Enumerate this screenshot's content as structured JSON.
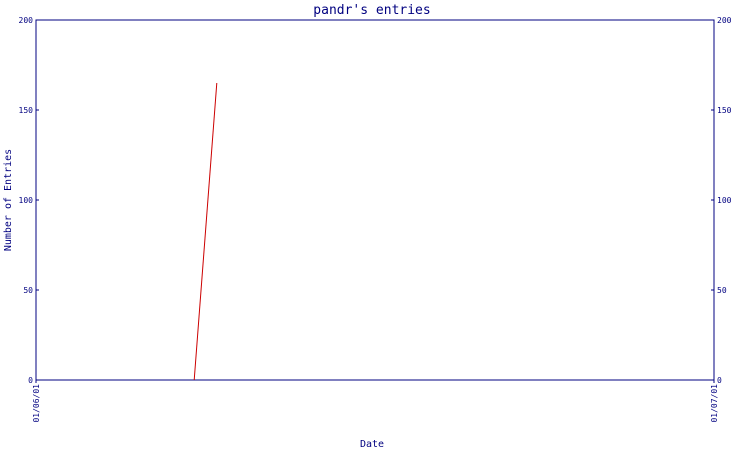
{
  "chart_data": {
    "type": "line",
    "title": "pandr's entries",
    "xlabel": "Date",
    "ylabel": "Number of Entries",
    "x_tick_labels": [
      "01/06/01",
      "01/07/01"
    ],
    "x": [
      "01/06/01",
      "01/07/01"
    ],
    "y_ticks": [
      0,
      50,
      100,
      150,
      200
    ],
    "ylim": [
      0,
      200
    ],
    "series": [
      {
        "points": [
          {
            "x": "2001-06-08",
            "y": 0
          },
          {
            "x": "2001-06-09",
            "y": 165
          }
        ]
      }
    ],
    "grid": false,
    "legend": "none",
    "right_axis_mirrored": true
  },
  "colors": {
    "axis": "#000080",
    "text": "#000080",
    "series": "#cc0000",
    "background": "#ffffff"
  }
}
